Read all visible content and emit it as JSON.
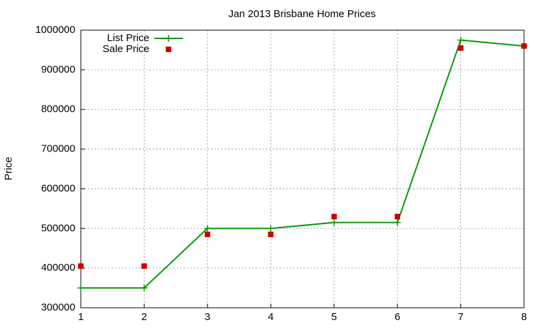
{
  "chart_data": {
    "type": "line",
    "title": "Jan 2013 Brisbane Home Prices",
    "y_label": "Price",
    "x": [
      1,
      2,
      3,
      4,
      5,
      6,
      7,
      8
    ],
    "series": [
      {
        "name": "List Price",
        "color": "#009900",
        "style": "linespoints",
        "values": [
          350000,
          350000,
          500000,
          500000,
          515000,
          515000,
          975000,
          960000
        ]
      },
      {
        "name": "Sale Price",
        "color": "#cc0000",
        "style": "points",
        "values": [
          405000,
          405000,
          485000,
          485000,
          530000,
          530000,
          955000,
          960000
        ]
      }
    ],
    "xlim": [
      1,
      8
    ],
    "xticks": [
      1,
      2,
      3,
      4,
      5,
      6,
      7,
      8
    ],
    "ylim": [
      300000,
      1000000
    ],
    "yticks": [
      300000,
      400000,
      500000,
      600000,
      700000,
      800000,
      900000,
      1000000
    ],
    "grid": true,
    "legend": "top-left"
  }
}
